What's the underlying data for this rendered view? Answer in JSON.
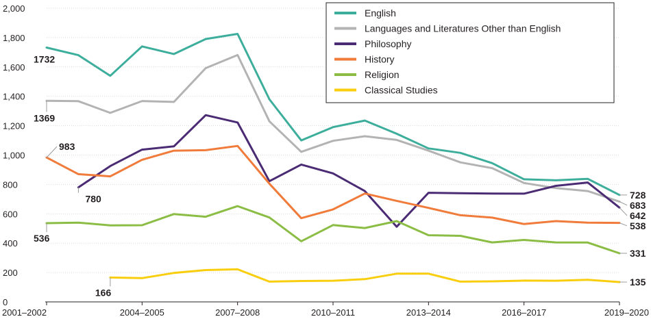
{
  "chart_data": {
    "type": "line",
    "x": [
      "2001–2002",
      "2002–2003",
      "2003–2004",
      "2004–2005",
      "2005–2006",
      "2006–2007",
      "2007–2008",
      "2008–2009",
      "2009–2010",
      "2010–2011",
      "2011–2012",
      "2012–2013",
      "2013–2014",
      "2014–2015",
      "2015–2016",
      "2016–2017",
      "2017–2018",
      "2018–2019",
      "2019–2020"
    ],
    "x_tick_labels": [
      "2001–2002",
      "2004–2005",
      "2007–2008",
      "2010–2011",
      "2013–2014",
      "2016–2017",
      "2019–2020"
    ],
    "ylim": [
      0,
      2000
    ],
    "y_ticks": [
      "0",
      "200",
      "400",
      "600",
      "800",
      "1,000",
      "1,200",
      "1,400",
      "1,600",
      "1,800",
      "2,000"
    ],
    "grid": true,
    "legend_position": "top-right",
    "series": [
      {
        "name": "English",
        "color": "#3dae9c",
        "values": [
          1732,
          1680,
          1540,
          1740,
          1688,
          1790,
          1825,
          1380,
          1100,
          1190,
          1235,
          1145,
          1045,
          1015,
          945,
          835,
          828,
          838,
          728
        ],
        "start_label": "1732",
        "end_label": "728"
      },
      {
        "name": "Languages and Literatures Other than English",
        "color": "#b3b3b3",
        "values": [
          1369,
          1367,
          1287,
          1368,
          1362,
          1592,
          1681,
          1230,
          1022,
          1097,
          1128,
          1103,
          1030,
          950,
          911,
          810,
          775,
          755,
          683
        ],
        "start_label": "1369",
        "end_label": "683"
      },
      {
        "name": "Philosophy",
        "color": "#4b2c74",
        "values": [
          null,
          780,
          925,
          1037,
          1059,
          1272,
          1222,
          822,
          935,
          875,
          755,
          512,
          743,
          740,
          738,
          737,
          790,
          813,
          642
        ],
        "start_label": "780",
        "end_label": "642"
      },
      {
        "name": "History",
        "color": "#f07b3a",
        "values": [
          983,
          870,
          855,
          968,
          1030,
          1033,
          1062,
          805,
          570,
          630,
          738,
          688,
          640,
          590,
          574,
          530,
          550,
          540,
          538
        ],
        "start_label": "983",
        "end_label": "538"
      },
      {
        "name": "Religion",
        "color": "#8bbd45",
        "values": [
          536,
          540,
          521,
          522,
          598,
          580,
          652,
          575,
          413,
          523,
          503,
          550,
          454,
          450,
          405,
          422,
          405,
          404,
          331
        ],
        "start_label": "536",
        "end_label": "331"
      },
      {
        "name": "Classical Studies",
        "color": "#f9ce0f",
        "values": [
          null,
          null,
          166,
          162,
          197,
          217,
          222,
          138,
          142,
          144,
          155,
          192,
          192,
          138,
          140,
          145,
          144,
          150,
          135
        ],
        "start_label": "166",
        "end_label": "135"
      }
    ]
  }
}
